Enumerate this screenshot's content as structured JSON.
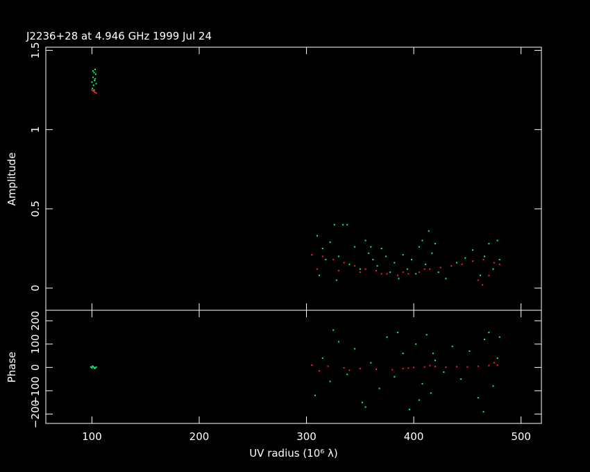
{
  "chart_data": [
    {
      "type": "scatter",
      "title": "J2236+28 at 4.946 GHz 1999 Jul 24",
      "ylabel": "Amplitude",
      "xlim": [
        57,
        519
      ],
      "xticks": [
        100,
        200,
        300,
        400,
        500
      ],
      "ylim": [
        -0.14,
        1.52
      ],
      "yticks": [
        0,
        0.5,
        1,
        1.5
      ],
      "series": [
        {
          "color": "#00ff80",
          "x": [
            100,
            101,
            102,
            103,
            101.5,
            102.5,
            103.5,
            100.5,
            104,
            102,
            103,
            101,
            310,
            315,
            318,
            322,
            326,
            330,
            334,
            338,
            340,
            345,
            350,
            355,
            358,
            362,
            366,
            370,
            374,
            378,
            382,
            386,
            390,
            394,
            398,
            402,
            405,
            408,
            411,
            414,
            417,
            420,
            423,
            430,
            440,
            448,
            455,
            462,
            466,
            470,
            474,
            478,
            480,
            312,
            328,
            360
          ],
          "values": [
            1.3,
            1.33,
            1.36,
            1.38,
            1.28,
            1.31,
            1.35,
            1.26,
            1.29,
            1.25,
            1.32,
            1.37,
            0.33,
            0.25,
            0.18,
            0.29,
            0.4,
            0.2,
            0.4,
            0.4,
            0.15,
            0.26,
            0.12,
            0.3,
            0.22,
            0.18,
            0.14,
            0.25,
            0.2,
            0.1,
            0.16,
            0.06,
            0.21,
            0.12,
            0.18,
            0.09,
            0.26,
            0.3,
            0.15,
            0.36,
            0.22,
            0.28,
            0.1,
            0.06,
            0.16,
            0.19,
            0.24,
            0.08,
            0.2,
            0.28,
            0.12,
            0.3,
            0.18,
            0.08,
            0.05,
            0.26
          ]
        },
        {
          "color": "#ff2020",
          "x": [
            100,
            101,
            102,
            103,
            104,
            305,
            315,
            325,
            335,
            345,
            355,
            365,
            375,
            385,
            395,
            405,
            415,
            425,
            435,
            445,
            455,
            465,
            475,
            480,
            310,
            330,
            350,
            370,
            390,
            410,
            460,
            464,
            470
          ],
          "values": [
            1.25,
            1.245,
            1.24,
            1.235,
            1.23,
            0.21,
            0.2,
            0.18,
            0.16,
            0.14,
            0.12,
            0.11,
            0.09,
            0.08,
            0.09,
            0.1,
            0.12,
            0.13,
            0.14,
            0.15,
            0.17,
            0.18,
            0.16,
            0.15,
            0.12,
            0.11,
            0.1,
            0.09,
            0.1,
            0.12,
            0.05,
            0.02,
            0.08
          ]
        }
      ]
    },
    {
      "type": "scatter",
      "ylabel": "Phase",
      "xlabel": "UV radius  (10⁶ λ)",
      "xlim": [
        57,
        519
      ],
      "xticks": [
        100,
        200,
        300,
        400,
        500
      ],
      "ylim": [
        -240,
        245
      ],
      "yticks": [
        {
          "value": -200,
          "label": "−200"
        },
        {
          "value": -100,
          "label": "−100"
        },
        0,
        100,
        200
      ],
      "series": [
        {
          "color": "#00ff80",
          "x": [
            99,
            100,
            101,
            102,
            103,
            104,
            100.5,
            102.5,
            308,
            315,
            322,
            330,
            338,
            345,
            352,
            360,
            368,
            375,
            382,
            390,
            396,
            402,
            408,
            412,
            416,
            420,
            428,
            436,
            444,
            452,
            460,
            466,
            470,
            474,
            478,
            480,
            325,
            355,
            385,
            405,
            418,
            465
          ],
          "values": [
            2,
            -2,
            4,
            0,
            -3,
            1,
            5,
            -4,
            -120,
            40,
            -60,
            110,
            -30,
            80,
            -150,
            20,
            -90,
            130,
            -40,
            60,
            -180,
            100,
            -70,
            140,
            -110,
            30,
            -20,
            90,
            -50,
            70,
            -130,
            120,
            150,
            -80,
            40,
            130,
            160,
            -170,
            150,
            -140,
            60,
            -190
          ]
        },
        {
          "color": "#ff2020",
          "x": [
            305,
            320,
            335,
            350,
            365,
            380,
            390,
            400,
            410,
            420,
            430,
            440,
            450,
            460,
            470,
            478,
            312,
            340,
            395,
            415,
            475
          ],
          "values": [
            10,
            5,
            -2,
            -5,
            -8,
            -10,
            -5,
            0,
            2,
            4,
            1,
            3,
            2,
            5,
            8,
            10,
            -15,
            -12,
            -3,
            8,
            20
          ]
        }
      ]
    }
  ]
}
